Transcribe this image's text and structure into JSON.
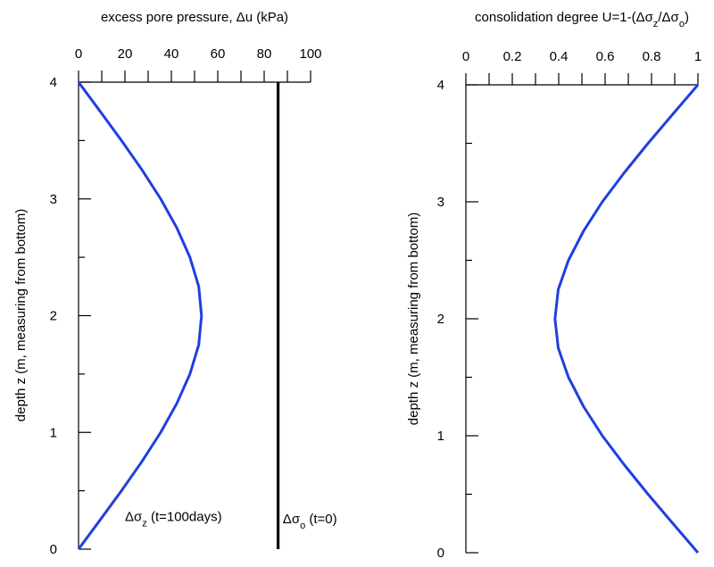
{
  "chart_data": [
    {
      "type": "line",
      "xlabel": "excess pore pressure, Δu (kPa)",
      "ylabel": "depth z (m, measuring from bottom)",
      "xlim": [
        0,
        100
      ],
      "ylim": [
        0,
        4
      ],
      "x_axis_position": "top",
      "x_ticks": [
        0,
        20,
        40,
        60,
        80,
        100
      ],
      "y_ticks": [
        0,
        1,
        2,
        3,
        4
      ],
      "grid": false,
      "series": [
        {
          "color": "#1f3fe0",
          "x": [
            0,
            9.3,
            18.5,
            27.3,
            35.4,
            42.4,
            48.0,
            51.8,
            53.0,
            51.8,
            48.0,
            42.4,
            35.4,
            27.3,
            18.5,
            9.3,
            0
          ],
          "y": [
            0,
            0.25,
            0.5,
            0.75,
            1.0,
            1.25,
            1.5,
            1.75,
            2.0,
            2.25,
            2.5,
            2.75,
            3.0,
            3.25,
            3.5,
            3.75,
            4.0
          ]
        },
        {
          "color": "#000000",
          "x": [
            86,
            86
          ],
          "y": [
            0,
            4
          ]
        }
      ],
      "annotations": [
        {
          "base": "Δσ",
          "sub": "z",
          "rest": " (t=100days)",
          "x": 20,
          "y": 0.24
        },
        {
          "base": "Δσ",
          "sub": "o",
          "rest": " (t=0)",
          "x": 88,
          "y": 0.22
        }
      ]
    },
    {
      "type": "line",
      "xlabel": {
        "pre": "consolidation degree U=1-(Δσ",
        "sub1": "z",
        "mid": "/Δσ",
        "sub2": "o",
        "post": ")"
      },
      "ylabel": "depth z (m, measuring from bottom)",
      "xlim": [
        0,
        1
      ],
      "ylim": [
        0,
        4
      ],
      "x_axis_position": "top",
      "x_ticks": [
        0,
        0.2,
        0.4,
        0.6,
        0.8,
        1
      ],
      "y_ticks": [
        0,
        1,
        2,
        3,
        4
      ],
      "grid": false,
      "series": [
        {
          "color": "#1f3fe0",
          "x": [
            1.0,
            0.892,
            0.785,
            0.683,
            0.588,
            0.507,
            0.442,
            0.398,
            0.384,
            0.398,
            0.442,
            0.507,
            0.588,
            0.683,
            0.785,
            0.892,
            1.0
          ],
          "y": [
            0,
            0.25,
            0.5,
            0.75,
            1.0,
            1.25,
            1.5,
            1.75,
            2.0,
            2.25,
            2.5,
            2.75,
            3.0,
            3.25,
            3.5,
            3.75,
            4.0
          ]
        }
      ]
    }
  ]
}
